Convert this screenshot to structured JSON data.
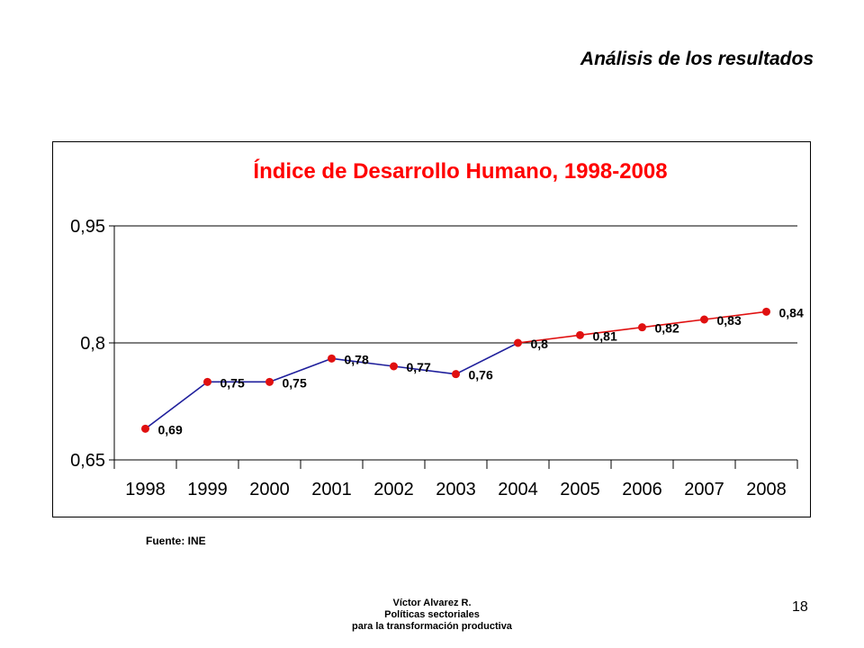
{
  "slide": {
    "title": "Análisis de los resultados",
    "source": "Fuente: INE",
    "footer": [
      "Víctor Alvarez R.",
      "Políticas sectoriales",
      "para la transformación productiva"
    ],
    "page_number": "18"
  },
  "chart_data": {
    "type": "line",
    "title": "Índice de Desarrollo Humano, 1998-2008",
    "categories": [
      "1998",
      "1999",
      "2000",
      "2001",
      "2002",
      "2003",
      "2004",
      "2005",
      "2006",
      "2007",
      "2008"
    ],
    "series": [
      {
        "values": [
          0.69,
          0.75,
          0.75,
          0.78,
          0.77,
          0.76,
          0.8,
          0.81,
          0.82,
          0.83,
          0.84
        ],
        "data_labels": [
          "0,69",
          "0,75",
          "0,75",
          "0,78",
          "0,77",
          "0,76",
          "0,8",
          "0,81",
          "0,82",
          "0,83",
          "0,84"
        ]
      }
    ],
    "segment_colors": {
      "historical": "#1f1f9c",
      "recent": "#e01010",
      "split_after_index": 6
    },
    "marker_color": "#e01010",
    "title_color": "#ff0000",
    "ylim": [
      0.65,
      0.95
    ],
    "yticks": [
      0.65,
      0.8,
      0.95
    ],
    "ytick_labels": [
      "0,65",
      "0,8",
      "0,95"
    ],
    "xlabel": "",
    "ylabel": "",
    "grid": true
  }
}
